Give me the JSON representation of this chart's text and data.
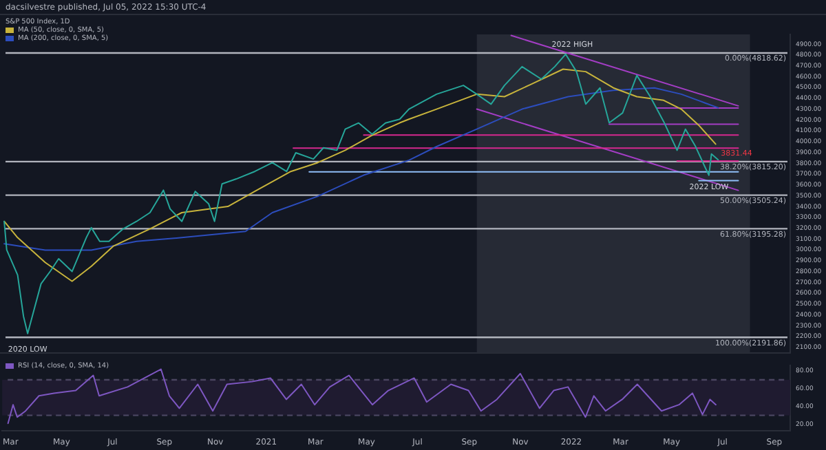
{
  "chart_data": [
    {
      "type": "line",
      "title": "dacsilvestre published, Jul 05, 2022 15:30 UTC-4",
      "subtitle": "S&P 500 Index, 1D",
      "legend": "top left",
      "tick_labels": "y",
      "xlim": [
        "2020-02-20",
        "2022-09-20"
      ],
      "ylim": [
        2050,
        4990
      ],
      "yticks": [
        {
          "value": 2100,
          "label": "2100.00"
        },
        {
          "value": 2200,
          "label": "2200.00"
        },
        {
          "value": 2300,
          "label": "2300.00"
        },
        {
          "value": 2400,
          "label": "2400.00"
        },
        {
          "value": 2500,
          "label": "2500.00"
        },
        {
          "value": 2600,
          "label": "2600.00"
        },
        {
          "value": 2700,
          "label": "2700.00"
        },
        {
          "value": 2800,
          "label": "2800.00"
        },
        {
          "value": 2900,
          "label": "2900.00"
        },
        {
          "value": 3000,
          "label": "3000.00"
        },
        {
          "value": 3100,
          "label": "3100.00"
        },
        {
          "value": 3200,
          "label": "3200.00"
        },
        {
          "value": 3300,
          "label": "3300.00"
        },
        {
          "value": 3400,
          "label": "3400.00"
        },
        {
          "value": 3500,
          "label": "3500.00"
        },
        {
          "value": 3600,
          "label": "3600.00"
        },
        {
          "value": 3700,
          "label": "3700.00"
        },
        {
          "value": 3800,
          "label": "3800.00"
        },
        {
          "value": 3900,
          "label": "3900.00"
        },
        {
          "value": 4000,
          "label": "4000.00"
        },
        {
          "value": 4100,
          "label": "4100.00"
        },
        {
          "value": 4200,
          "label": "4200.00"
        },
        {
          "value": 4300,
          "label": "4300.00"
        },
        {
          "value": 4400,
          "label": "4400.00"
        },
        {
          "value": 4500,
          "label": "4500.00"
        },
        {
          "value": 4600,
          "label": "4600.00"
        },
        {
          "value": 4700,
          "label": "4700.00"
        },
        {
          "value": 4800,
          "label": "4800.00"
        },
        {
          "value": 4900,
          "label": "4900.00"
        }
      ],
      "bands": [
        {
          "axis": "x",
          "from": "2021-09-11",
          "to": "2022-08-03",
          "color": "#262a35"
        }
      ],
      "ref_lines": [
        {
          "axis": "y",
          "value": 4818.62,
          "label": "0.00%(4818.62)",
          "color": "#b2b5be"
        },
        {
          "axis": "y",
          "value": 3815.2,
          "label": "38.20%(3815.20)",
          "color": "#b2b5be"
        },
        {
          "axis": "y",
          "value": 3505.24,
          "label": "50.00%(3505.24)",
          "color": "#b2b5be"
        },
        {
          "axis": "y",
          "value": 3195.28,
          "label": "61.80%(3195.28)",
          "color": "#b2b5be"
        },
        {
          "axis": "y",
          "value": 2191.86,
          "label": "100.00%(2191.86)",
          "color": "#b2b5be"
        }
      ],
      "series": [
        {
          "color": "#26a69a",
          "x": [
            "2020-02-25",
            "2020-02-28",
            "2020-03-12",
            "2020-03-19",
            "2020-03-24",
            "2020-04-01",
            "2020-04-09",
            "2020-04-20",
            "2020-04-30",
            "2020-05-16",
            "2020-06-02",
            "2020-06-08",
            "2020-06-18",
            "2020-06-29",
            "2020-07-16",
            "2020-08-01",
            "2020-08-17",
            "2020-09-02",
            "2020-09-10",
            "2020-09-24",
            "2020-10-10",
            "2020-10-26",
            "2020-11-02",
            "2020-11-11",
            "2020-11-28",
            "2020-12-20",
            "2021-01-10",
            "2021-01-27",
            "2021-02-07",
            "2021-02-28",
            "2021-03-12",
            "2021-03-28",
            "2021-04-07",
            "2021-04-23",
            "2021-05-09",
            "2021-05-25",
            "2021-06-11",
            "2021-06-22",
            "2021-07-25",
            "2021-08-26",
            "2021-09-11",
            "2021-09-28",
            "2021-10-14",
            "2021-11-04",
            "2021-11-27",
            "2021-12-13",
            "2021-12-26",
            "2022-01-08",
            "2022-01-19",
            "2022-02-05",
            "2022-02-16",
            "2022-03-04",
            "2022-03-21",
            "2022-04-06",
            "2022-04-22",
            "2022-05-08",
            "2022-05-18",
            "2022-05-30",
            "2022-06-10",
            "2022-06-15",
            "2022-06-18",
            "2022-06-26"
          ],
          "values": [
            3263,
            3000,
            2768,
            2388,
            2227,
            2457,
            2687,
            2802,
            2918,
            2800,
            3113,
            3205,
            3078,
            3078,
            3194,
            3263,
            3344,
            3551,
            3378,
            3263,
            3540,
            3425,
            3263,
            3609,
            3655,
            3724,
            3805,
            3724,
            3897,
            3839,
            3943,
            3920,
            4115,
            4172,
            4069,
            4172,
            4207,
            4300,
            4438,
            4519,
            4438,
            4346,
            4519,
            4692,
            4577,
            4692,
            4807,
            4646,
            4346,
            4496,
            4173,
            4265,
            4611,
            4415,
            4185,
            3920,
            4115,
            3955,
            3770,
            3689,
            3885,
            3831.44
          ]
        },
        {
          "name": "MA (50, close, 0, SMA, 5)",
          "color": "#c8b43c",
          "x": [
            "2020-02-25",
            "2020-03-12",
            "2020-04-14",
            "2020-05-16",
            "2020-06-08",
            "2020-07-04",
            "2020-08-17",
            "2020-09-24",
            "2020-10-26",
            "2020-11-18",
            "2020-12-20",
            "2021-02-01",
            "2021-03-05",
            "2021-04-07",
            "2021-05-09",
            "2021-06-11",
            "2021-06-22",
            "2021-07-25",
            "2021-09-11",
            "2021-10-14",
            "2021-11-15",
            "2021-12-23",
            "2022-01-19",
            "2022-02-21",
            "2022-03-21",
            "2022-04-22",
            "2022-05-13",
            "2022-06-03",
            "2022-06-23"
          ],
          "values": [
            3263,
            3113,
            2883,
            2710,
            2848,
            3033,
            3194,
            3344,
            3378,
            3401,
            3540,
            3724,
            3805,
            3920,
            4058,
            4173,
            4207,
            4300,
            4438,
            4415,
            4530,
            4669,
            4646,
            4496,
            4415,
            4381,
            4300,
            4150,
            3977
          ]
        },
        {
          "name": "MA (200, close, 0, SMA, 5)",
          "color": "#2c4dbd",
          "x": [
            "2020-02-25",
            "2020-04-14",
            "2020-06-08",
            "2020-08-01",
            "2020-09-24",
            "2020-12-09",
            "2021-01-10",
            "2021-03-05",
            "2021-04-29",
            "2021-06-22",
            "2021-07-25",
            "2021-09-11",
            "2021-11-04",
            "2021-12-29",
            "2022-02-21",
            "2022-04-11",
            "2022-05-13",
            "2022-06-10",
            "2022-06-26"
          ],
          "values": [
            3056,
            2998,
            2998,
            3079,
            3113,
            3171,
            3344,
            3494,
            3690,
            3828,
            3954,
            4115,
            4300,
            4415,
            4473,
            4496,
            4438,
            4358,
            4312
          ]
        },
        {
          "color": "#d6288f",
          "x": [
            "2021-04-29",
            "2022-07-20"
          ],
          "values": [
            4060,
            4060
          ]
        },
        {
          "color": "#d6288f",
          "x": [
            "2021-02-04",
            "2022-07-20"
          ],
          "values": [
            3940,
            3940
          ]
        },
        {
          "color": "#d6288f",
          "x": [
            "2022-05-08",
            "2022-07-20"
          ],
          "values": [
            3820,
            3820
          ]
        },
        {
          "color": "#a33dc4",
          "x": [
            "2022-04-14",
            "2022-07-20"
          ],
          "values": [
            4310,
            4310
          ]
        },
        {
          "color": "#a33dc4",
          "x": [
            "2022-02-16",
            "2022-07-20"
          ],
          "values": [
            4160,
            4160
          ]
        },
        {
          "color": "#90bff9",
          "x": [
            "2021-02-23",
            "2022-07-20"
          ],
          "values": [
            3720,
            3720
          ]
        },
        {
          "color": "#90bff9",
          "x": [
            "2022-06-03",
            "2022-07-20"
          ],
          "values": [
            3640,
            3640
          ]
        },
        {
          "color": "#a33dc4",
          "x": [
            "2021-10-22",
            "2022-07-20"
          ],
          "values": [
            4980,
            4330
          ]
        },
        {
          "color": "#a33dc4",
          "x": [
            "2021-09-11",
            "2022-07-20"
          ],
          "values": [
            4300,
            3550
          ]
        }
      ],
      "annotations": [
        {
          "text": "2022 HIGH",
          "x": "2022-01-03",
          "y": 4818.62
        },
        {
          "text": "2022 LOW",
          "x": "2022-06-15",
          "y": 3689
        },
        {
          "text": "2020 LOW",
          "x": "2020-03-24",
          "y": 2191.86
        },
        {
          "text": "3831.44",
          "x": "2022-06-26",
          "y": 3831.44
        }
      ]
    },
    {
      "type": "line",
      "legend": "top left",
      "xlim": [
        "2020-02-20",
        "2022-09-20"
      ],
      "xticks": [
        {
          "value": "2020-03-01",
          "label": "Mar"
        },
        {
          "value": "2020-05-01",
          "label": "May"
        },
        {
          "value": "2020-07-01",
          "label": "Jul"
        },
        {
          "value": "2020-09-01",
          "label": "Sep"
        },
        {
          "value": "2020-11-01",
          "label": "Nov"
        },
        {
          "value": "2021-01-01",
          "label": "2021"
        },
        {
          "value": "2021-03-01",
          "label": "Mar"
        },
        {
          "value": "2021-05-01",
          "label": "May"
        },
        {
          "value": "2021-07-01",
          "label": "Jul"
        },
        {
          "value": "2021-09-01",
          "label": "Sep"
        },
        {
          "value": "2021-11-01",
          "label": "Nov"
        },
        {
          "value": "2022-01-01",
          "label": "2022"
        },
        {
          "value": "2022-03-01",
          "label": "Mar"
        },
        {
          "value": "2022-05-01",
          "label": "May"
        },
        {
          "value": "2022-07-01",
          "label": "Jul"
        },
        {
          "value": "2022-09-01",
          "label": "Sep"
        }
      ],
      "ylim": [
        13,
        86
      ],
      "yticks": [
        {
          "value": 20,
          "label": "20.00"
        },
        {
          "value": 40,
          "label": "40.00"
        },
        {
          "value": 60,
          "label": "60.00"
        },
        {
          "value": 80,
          "label": "80.00"
        }
      ],
      "bands": [
        {
          "axis": "y",
          "from": 30,
          "to": 70,
          "color": "#1f1b30"
        }
      ],
      "ref_lines": [
        {
          "axis": "y",
          "value": 70,
          "color": "#4a4560",
          "line_style": "dashed"
        },
        {
          "axis": "y",
          "value": 30,
          "color": "#4a4560",
          "line_style": "dashed"
        }
      ],
      "series": [
        {
          "name": "RSI (14, close, 0, SMA, 14)",
          "color": "#7e57c2",
          "x": [
            "2020-02-27",
            "2020-03-04",
            "2020-03-09",
            "2020-03-19",
            "2020-04-04",
            "2020-04-22",
            "2020-05-18",
            "2020-06-08",
            "2020-06-15",
            "2020-07-19",
            "2020-08-28",
            "2020-09-07",
            "2020-09-19",
            "2020-10-11",
            "2020-10-29",
            "2020-11-15",
            "2020-12-15",
            "2021-01-06",
            "2021-01-25",
            "2021-02-12",
            "2021-02-28",
            "2021-03-18",
            "2021-04-10",
            "2021-05-08",
            "2021-05-27",
            "2021-06-27",
            "2021-07-12",
            "2021-08-10",
            "2021-08-31",
            "2021-09-15",
            "2021-10-04",
            "2021-11-01",
            "2021-11-24",
            "2021-12-11",
            "2021-12-28",
            "2022-01-18",
            "2022-01-28",
            "2022-02-11",
            "2022-03-03",
            "2022-03-21",
            "2022-04-19",
            "2022-05-10",
            "2022-05-26",
            "2022-06-07",
            "2022-06-16",
            "2022-06-23"
          ],
          "values": [
            21,
            42,
            28,
            35,
            52,
            55,
            58,
            75,
            52,
            62,
            82,
            52,
            38,
            65,
            35,
            65,
            68,
            72,
            48,
            65,
            42,
            62,
            75,
            42,
            58,
            72,
            45,
            65,
            58,
            35,
            48,
            77,
            38,
            58,
            62,
            28,
            52,
            35,
            48,
            65,
            35,
            42,
            55,
            31,
            48,
            42
          ]
        }
      ]
    }
  ]
}
